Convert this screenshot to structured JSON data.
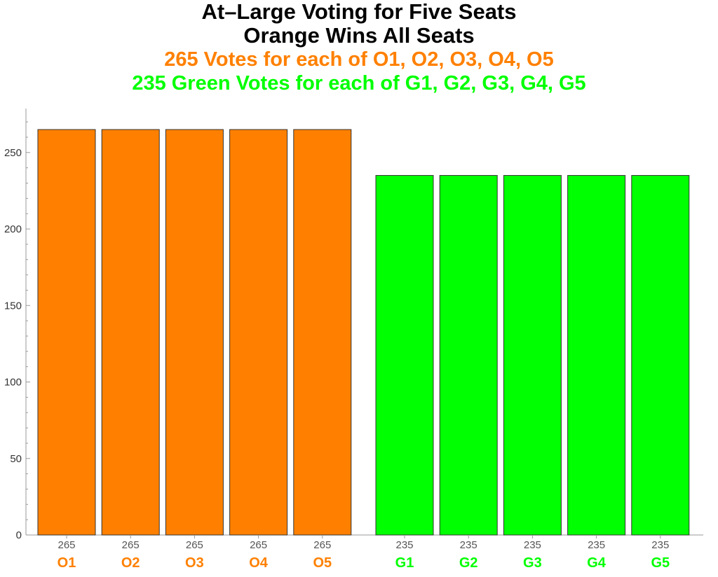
{
  "chart_data": {
    "type": "bar",
    "title": "At–Large Voting for Five Seats",
    "subtitle": "Orange Wins All Seats",
    "annotations": [
      {
        "text": "265 Votes for each of O1, O2, O3, O4, O5",
        "color": "#ff8000"
      },
      {
        "text": "235 Green Votes for each of G1, G2, G3, G4, G5",
        "color": "#00ff00"
      }
    ],
    "groups": [
      {
        "color": "#ff8000",
        "categories": [
          "O1",
          "O2",
          "O3",
          "O4",
          "O5"
        ],
        "values": [
          265,
          265,
          265,
          265,
          265
        ]
      },
      {
        "color": "#00ff00",
        "categories": [
          "G1",
          "G2",
          "G3",
          "G4",
          "G5"
        ],
        "values": [
          235,
          235,
          235,
          235,
          235
        ]
      }
    ],
    "data_labels": [
      "265",
      "265",
      "265",
      "265",
      "265",
      "235",
      "235",
      "235",
      "235",
      "235"
    ],
    "ylim": [
      0,
      275
    ],
    "y_ticks": [
      0,
      50,
      100,
      150,
      200,
      250
    ],
    "xlabel": "",
    "ylabel": "",
    "grid": false,
    "legend": "none"
  }
}
